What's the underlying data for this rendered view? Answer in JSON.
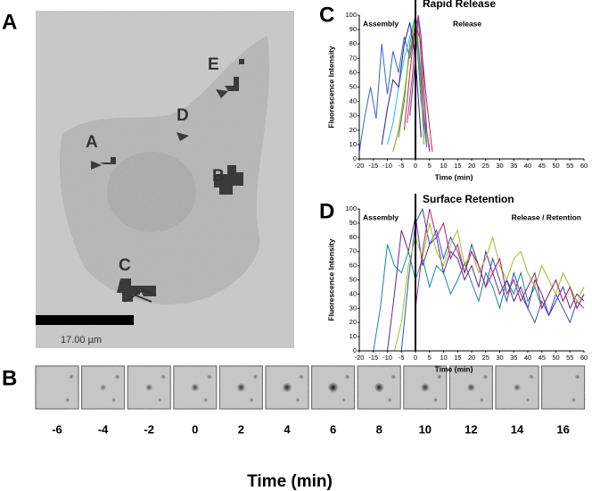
{
  "panel_labels": [
    "A",
    "B",
    "C",
    "D"
  ],
  "image": {
    "labels": [
      "A",
      "B",
      "C",
      "D",
      "E"
    ],
    "scale_bar": "17.00 µm"
  },
  "strip": {
    "frames": [
      -6,
      -4,
      -2,
      0,
      2,
      4,
      6,
      8,
      10,
      12,
      14,
      16
    ],
    "xlabel": "Time (min)"
  },
  "chart_data": [
    {
      "type": "line",
      "title": "Rapid Release",
      "xlabel": "Time (min)",
      "ylabel": "Fluorescence Intensity",
      "annotations": [
        "Assembly",
        "Release"
      ],
      "vline": 0,
      "xlim": [
        -20,
        60
      ],
      "xticks": [
        -20,
        -15,
        -10,
        -5,
        0,
        5,
        10,
        15,
        20,
        25,
        30,
        35,
        40,
        45,
        50,
        55,
        60
      ],
      "ylim": [
        0,
        100
      ],
      "yticks": [
        0,
        10,
        20,
        30,
        40,
        50,
        60,
        70,
        80,
        90,
        100
      ],
      "series": [
        {
          "color": "#3a5fcd",
          "x": [
            -20,
            -18,
            -16,
            -14,
            -12,
            -10,
            -8,
            -6,
            -4,
            -2,
            0,
            2,
            4
          ],
          "values": [
            5,
            30,
            50,
            28,
            80,
            45,
            75,
            60,
            85,
            70,
            95,
            40,
            8
          ]
        },
        {
          "color": "#22c0e0",
          "x": [
            -10,
            -8,
            -6,
            -4,
            -2,
            0,
            2,
            4
          ],
          "values": [
            10,
            25,
            50,
            70,
            85,
            100,
            60,
            10
          ]
        },
        {
          "color": "#d02030",
          "x": [
            -4,
            -2,
            0,
            2,
            4,
            6
          ],
          "values": [
            20,
            60,
            95,
            80,
            40,
            5
          ]
        },
        {
          "color": "#2a9d4a",
          "x": [
            -6,
            -4,
            -2,
            0,
            2,
            4
          ],
          "values": [
            15,
            40,
            80,
            100,
            55,
            10
          ]
        },
        {
          "color": "#6a2a9a",
          "x": [
            -2,
            0,
            1,
            2,
            3,
            4,
            5
          ],
          "values": [
            30,
            70,
            100,
            85,
            50,
            20,
            5
          ]
        },
        {
          "color": "#c03080",
          "x": [
            -3,
            -1,
            0,
            1,
            2,
            3,
            5
          ],
          "values": [
            25,
            60,
            90,
            100,
            70,
            30,
            8
          ]
        },
        {
          "color": "#8a9a20",
          "x": [
            -8,
            -6,
            -4,
            -2,
            0,
            2,
            3
          ],
          "values": [
            5,
            20,
            45,
            75,
            95,
            50,
            10
          ]
        },
        {
          "color": "#202080",
          "x": [
            -12,
            -10,
            -8,
            -6,
            -4,
            -2,
            0,
            2
          ],
          "values": [
            10,
            35,
            55,
            50,
            80,
            95,
            70,
            15
          ]
        }
      ]
    },
    {
      "type": "line",
      "title": "Surface Retention",
      "xlabel": "Time (min)",
      "ylabel": "Fluorescence Intensity",
      "annotations": [
        "Assembly",
        "Release / Retention"
      ],
      "vline": 0,
      "xlim": [
        -20,
        60
      ],
      "xticks": [
        -20,
        -15,
        -10,
        -5,
        0,
        5,
        10,
        15,
        20,
        25,
        30,
        35,
        40,
        45,
        50,
        55,
        60
      ],
      "ylim": [
        0,
        100
      ],
      "yticks": [
        0,
        10,
        20,
        30,
        40,
        50,
        60,
        70,
        80,
        90,
        100
      ],
      "series": [
        {
          "color": "#1a8a8a",
          "x": [
            -15,
            -12.5,
            -10,
            -7.5,
            -5,
            -2.5,
            0,
            2.5,
            5,
            7.5,
            10,
            12.5,
            15,
            17.5,
            20,
            22.5,
            25,
            27.5,
            30,
            32.5,
            35,
            37.5,
            40,
            42.5,
            45,
            47.5,
            50,
            52.5,
            55,
            57.5,
            60
          ],
          "values": [
            0,
            30,
            75,
            60,
            55,
            70,
            50,
            65,
            45,
            60,
            55,
            40,
            50,
            62,
            48,
            35,
            55,
            45,
            30,
            50,
            40,
            55,
            35,
            45,
            30,
            40,
            50,
            35,
            45,
            30,
            40
          ]
        },
        {
          "color": "#5a2a9a",
          "x": [
            -10,
            -7.5,
            -5,
            -2.5,
            0,
            2.5,
            5,
            7.5,
            10,
            12.5,
            15,
            17.5,
            20,
            22.5,
            25,
            27.5,
            30,
            32.5,
            35,
            37.5,
            40,
            42.5,
            45,
            47.5,
            50,
            52.5,
            55,
            57.5,
            60
          ],
          "values": [
            0,
            40,
            85,
            70,
            95,
            60,
            75,
            80,
            55,
            70,
            65,
            50,
            60,
            45,
            70,
            55,
            40,
            50,
            35,
            45,
            30,
            50,
            40,
            25,
            35,
            45,
            30,
            40,
            35
          ]
        },
        {
          "color": "#3050c0",
          "x": [
            -5,
            -2.5,
            0,
            2.5,
            5,
            7.5,
            10,
            12.5,
            15,
            17.5,
            20,
            22.5,
            25,
            27.5,
            30,
            32.5,
            35,
            37.5,
            40,
            42.5,
            45,
            47.5,
            50,
            52.5,
            55,
            57.5,
            60
          ],
          "values": [
            0,
            50,
            90,
            100,
            75,
            85,
            65,
            80,
            70,
            55,
            75,
            60,
            45,
            65,
            50,
            35,
            55,
            40,
            30,
            20,
            35,
            25,
            40,
            30,
            20,
            35,
            30
          ]
        },
        {
          "color": "#9ac020",
          "x": [
            -7.5,
            -5,
            -2.5,
            0,
            2.5,
            5,
            7.5,
            10,
            12.5,
            15,
            17.5,
            20,
            22.5,
            25,
            27.5,
            30,
            32.5,
            35,
            37.5,
            40,
            42.5,
            45,
            47.5,
            50,
            52.5,
            55,
            57.5,
            60
          ],
          "values": [
            0,
            20,
            60,
            80,
            65,
            90,
            70,
            60,
            75,
            85,
            60,
            70,
            55,
            65,
            80,
            60,
            50,
            65,
            70,
            55,
            45,
            60,
            50,
            40,
            55,
            45,
            35,
            45
          ]
        },
        {
          "color": "#b02070",
          "x": [
            0,
            2.5,
            5,
            7.5,
            10,
            12.5,
            15,
            17.5,
            20,
            22.5,
            25,
            27.5,
            30,
            32.5,
            35,
            37.5,
            40,
            42.5,
            45,
            47.5,
            50,
            52.5,
            55,
            57.5,
            60
          ],
          "values": [
            30,
            70,
            100,
            80,
            90,
            65,
            75,
            55,
            70,
            60,
            45,
            55,
            65,
            40,
            50,
            35,
            45,
            55,
            30,
            40,
            50,
            35,
            45,
            30,
            40
          ]
        }
      ]
    }
  ]
}
